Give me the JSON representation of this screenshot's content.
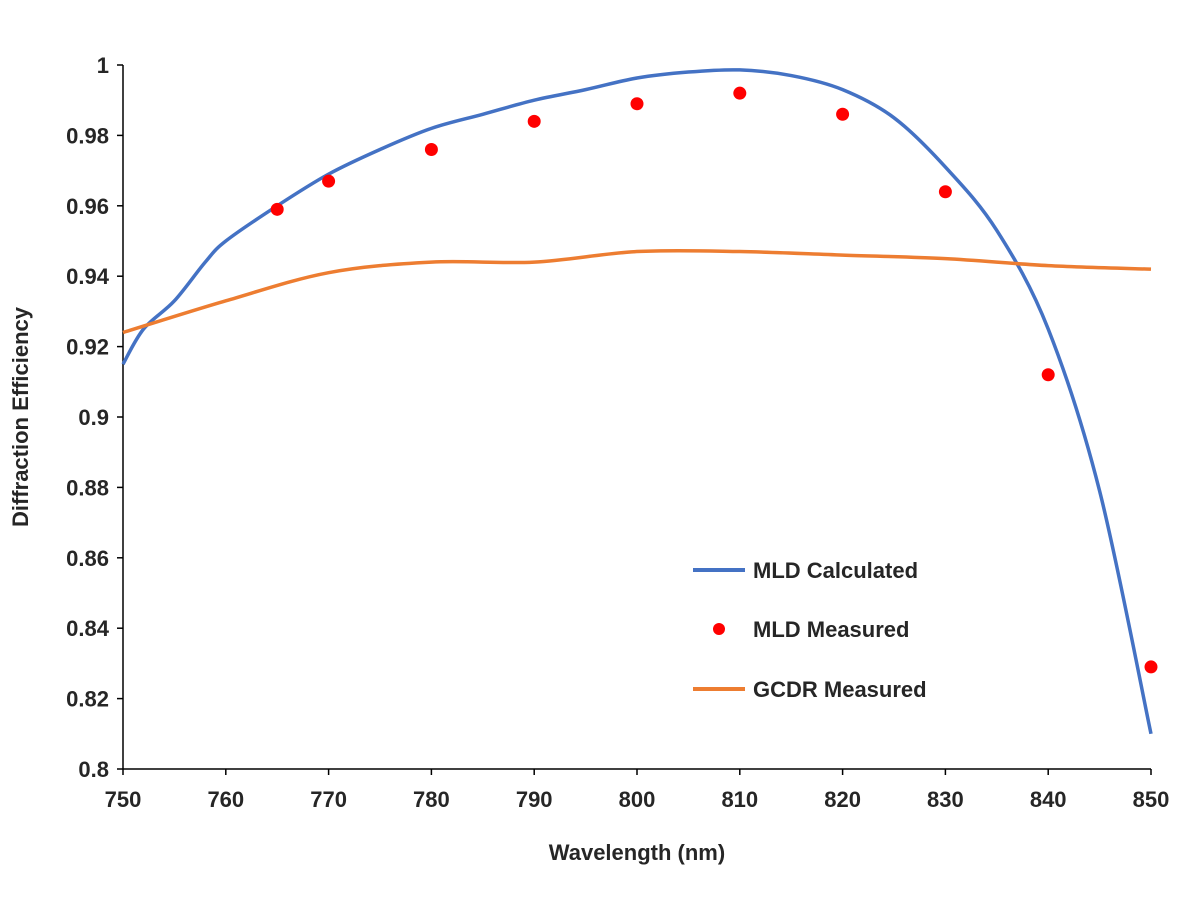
{
  "chart_data": {
    "type": "line",
    "title": "",
    "xlabel": "Wavelength (nm)",
    "ylabel": "Diffraction Efficiency",
    "xlim": [
      750,
      850
    ],
    "ylim": [
      0.8,
      1
    ],
    "xticks": [
      "750",
      "760",
      "770",
      "780",
      "790",
      "800",
      "810",
      "820",
      "830",
      "840",
      "850"
    ],
    "yticks": [
      "0.8",
      "0.82",
      "0.84",
      "0.86",
      "0.88",
      "0.9",
      "0.92",
      "0.94",
      "0.96",
      "0.98",
      "1"
    ],
    "grid": false,
    "legend_position": "bottom-right",
    "series": [
      {
        "name": "MLD Calculated",
        "kind": "line",
        "color": "#4472C4",
        "x": [
          750,
          752,
          755,
          758,
          760,
          765,
          770,
          775,
          780,
          785,
          790,
          795,
          800,
          805,
          810,
          815,
          820,
          825,
          830,
          835,
          840,
          845,
          850
        ],
        "y": [
          0.915,
          0.925,
          0.933,
          0.944,
          0.95,
          0.96,
          0.969,
          0.976,
          0.982,
          0.986,
          0.99,
          0.993,
          0.9963,
          0.998,
          0.9986,
          0.997,
          0.993,
          0.985,
          0.971,
          0.953,
          0.925,
          0.879,
          0.81
        ]
      },
      {
        "name": "MLD Measured",
        "kind": "scatter",
        "color": "#FF0000",
        "x": [
          765,
          770,
          780,
          790,
          800,
          810,
          820,
          830,
          840,
          850
        ],
        "y": [
          0.959,
          0.967,
          0.976,
          0.984,
          0.989,
          0.992,
          0.986,
          0.964,
          0.912,
          0.829
        ]
      },
      {
        "name": "GCDR Measured",
        "kind": "line",
        "color": "#ED7D31",
        "x": [
          750,
          760,
          770,
          780,
          790,
          800,
          810,
          820,
          830,
          840,
          850
        ],
        "y": [
          0.924,
          0.933,
          0.941,
          0.944,
          0.944,
          0.947,
          0.947,
          0.946,
          0.945,
          0.943,
          0.942
        ]
      }
    ]
  }
}
